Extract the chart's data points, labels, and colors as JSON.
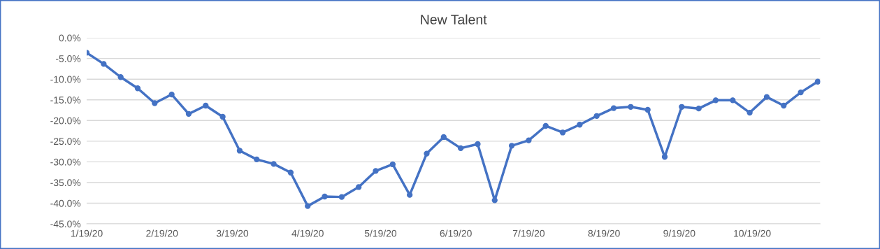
{
  "chart_data": {
    "type": "line",
    "title": "New Talent",
    "x": [
      "2020-01-19",
      "2020-01-26",
      "2020-02-02",
      "2020-02-09",
      "2020-02-16",
      "2020-02-23",
      "2020-03-01",
      "2020-03-08",
      "2020-03-15",
      "2020-03-22",
      "2020-03-29",
      "2020-04-05",
      "2020-04-12",
      "2020-04-19",
      "2020-04-26",
      "2020-05-03",
      "2020-05-10",
      "2020-05-17",
      "2020-05-24",
      "2020-05-31",
      "2020-06-07",
      "2020-06-14",
      "2020-06-21",
      "2020-06-28",
      "2020-07-05",
      "2020-07-12",
      "2020-07-19",
      "2020-07-26",
      "2020-08-02",
      "2020-08-09",
      "2020-08-16",
      "2020-08-23",
      "2020-08-30",
      "2020-09-06",
      "2020-09-13",
      "2020-09-20",
      "2020-09-27",
      "2020-10-04",
      "2020-10-11",
      "2020-10-18",
      "2020-10-25",
      "2020-11-01",
      "2020-11-08",
      "2020-11-15"
    ],
    "series": [
      {
        "color": "#4472c4",
        "values": [
          -3.6,
          -6.3,
          -9.5,
          -12.2,
          -15.8,
          -13.7,
          -18.4,
          -16.4,
          -19.1,
          -27.3,
          -29.4,
          -30.5,
          -32.6,
          -40.7,
          -38.4,
          -38.5,
          -36.1,
          -32.2,
          -30.6,
          -38.0,
          -28.0,
          -24.0,
          -26.7,
          -25.7,
          -39.3,
          -26.1,
          -24.8,
          -21.3,
          -22.9,
          -21.0,
          -18.9,
          -17.0,
          -16.7,
          -17.4,
          -28.8,
          -16.7,
          -17.1,
          -15.1,
          -15.1,
          -18.1,
          -14.3,
          -16.4,
          -13.2,
          -10.6
        ]
      }
    ],
    "xlim": [
      "2020-01-19",
      "2020-11-16"
    ],
    "xticks": [
      {
        "value": "2020-01-19",
        "label": "1/19/20"
      },
      {
        "value": "2020-02-19",
        "label": "2/19/20"
      },
      {
        "value": "2020-03-19",
        "label": "3/19/20"
      },
      {
        "value": "2020-04-19",
        "label": "4/19/20"
      },
      {
        "value": "2020-05-19",
        "label": "5/19/20"
      },
      {
        "value": "2020-06-19",
        "label": "6/19/20"
      },
      {
        "value": "2020-07-19",
        "label": "7/19/20"
      },
      {
        "value": "2020-08-19",
        "label": "8/19/20"
      },
      {
        "value": "2020-09-19",
        "label": "9/19/20"
      },
      {
        "value": "2020-10-19",
        "label": "10/19/20"
      }
    ],
    "ylim": [
      -45,
      0
    ],
    "yticks": [
      {
        "value": 0,
        "label": "0.0%"
      },
      {
        "value": -5,
        "label": "-5.0%"
      },
      {
        "value": -10,
        "label": "-10.0%"
      },
      {
        "value": -15,
        "label": "-15.0%"
      },
      {
        "value": -20,
        "label": "-20.0%"
      },
      {
        "value": -25,
        "label": "-25.0%"
      },
      {
        "value": -30,
        "label": "-30.0%"
      },
      {
        "value": -35,
        "label": "-35.0%"
      },
      {
        "value": -40,
        "label": "-40.0%"
      },
      {
        "value": -45,
        "label": "-45.0%"
      }
    ],
    "grid": "y",
    "marker": "circle",
    "line_style": "solid"
  }
}
